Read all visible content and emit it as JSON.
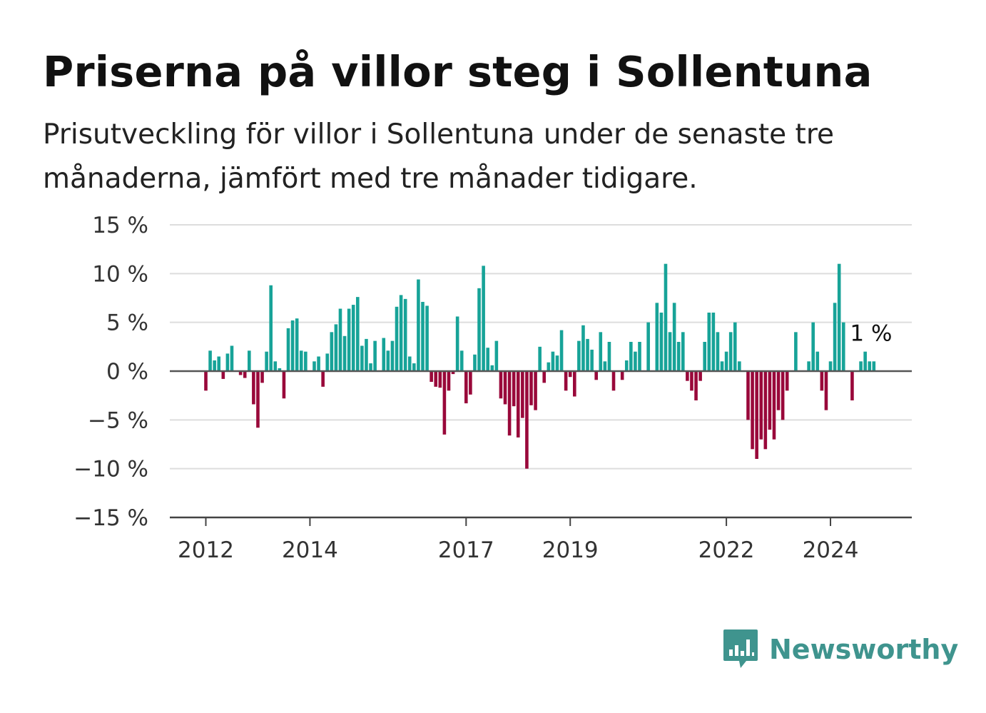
{
  "title": "Priserna på villor steg i Sollentuna",
  "subtitle": "Prisutveckling för villor i Sollentuna under de senaste tre månaderna, jämfört med tre månader tidigare.",
  "brand": {
    "name": "Newsworthy",
    "icon": "bar-chart-speech-bubble-icon"
  },
  "colors": {
    "positive": "#17a398",
    "negative": "#99083a",
    "grid": "#dddddd",
    "axis": "#444444",
    "brand": "#3f948e"
  },
  "chart_data": {
    "type": "bar",
    "title": "Priserna på villor steg i Sollentuna",
    "xlabel": "",
    "ylabel": "",
    "ylim": [
      -15,
      15
    ],
    "yticks": [
      15,
      10,
      5,
      0,
      -5,
      -10,
      -15
    ],
    "ytick_labels": [
      "15 %",
      "10 %",
      "5 %",
      "0 %",
      "−5 %",
      "−10 %",
      "−15 %"
    ],
    "xtick_labels": [
      {
        "label": "2012",
        "index": 0
      },
      {
        "label": "2014",
        "index": 24
      },
      {
        "label": "2017",
        "index": 60
      },
      {
        "label": "2019",
        "index": 84
      },
      {
        "label": "2022",
        "index": 120
      },
      {
        "label": "2024",
        "index": 144
      }
    ],
    "start": "2012-01",
    "frequency": "monthly",
    "grid": true,
    "annotation": {
      "text": "1 %",
      "index": 155
    },
    "values": [
      -2,
      2.1,
      1.1,
      1.5,
      -0.8,
      1.8,
      2.6,
      0,
      -0.4,
      -0.7,
      2.1,
      -3.4,
      -5.8,
      -1.2,
      2,
      8.8,
      1,
      0.3,
      -2.8,
      4.4,
      5.2,
      5.4,
      2.1,
      2,
      0,
      1,
      1.5,
      -1.6,
      1.8,
      4,
      4.8,
      6.4,
      3.6,
      6.4,
      6.8,
      7.6,
      2.6,
      3.3,
      0.8,
      3.1,
      0,
      3.4,
      2.1,
      3.1,
      6.6,
      7.8,
      7.4,
      1.5,
      0.8,
      9.4,
      7.1,
      6.7,
      -1.1,
      -1.6,
      -1.7,
      -6.5,
      -2,
      -0.3,
      5.6,
      2.1,
      -3.3,
      -2.4,
      1.7,
      8.5,
      10.8,
      2.4,
      0.6,
      3.1,
      -2.8,
      -3.4,
      -6.6,
      -3.6,
      -6.8,
      -4.8,
      -10,
      -3.5,
      -4,
      2.5,
      -1.2,
      0.9,
      2,
      1.6,
      4.2,
      -2,
      -0.6,
      -2.6,
      3.1,
      4.7,
      3.3,
      2.2,
      -0.9,
      4,
      1,
      3,
      -2,
      0,
      -0.9,
      1.1,
      3,
      2,
      3,
      0,
      5,
      0,
      7,
      6,
      11,
      4,
      7,
      3,
      4,
      -1,
      -2,
      -3,
      -1,
      3,
      6,
      6,
      4,
      1,
      2,
      4,
      5,
      1,
      0,
      -5,
      -8,
      -9,
      -7,
      -8,
      -6,
      -7,
      -4,
      -5,
      -2,
      0,
      4,
      0,
      0,
      1,
      5,
      2,
      -2,
      -4,
      1,
      7,
      11,
      5,
      0,
      -3,
      0,
      1,
      2,
      1,
      1
    ]
  }
}
